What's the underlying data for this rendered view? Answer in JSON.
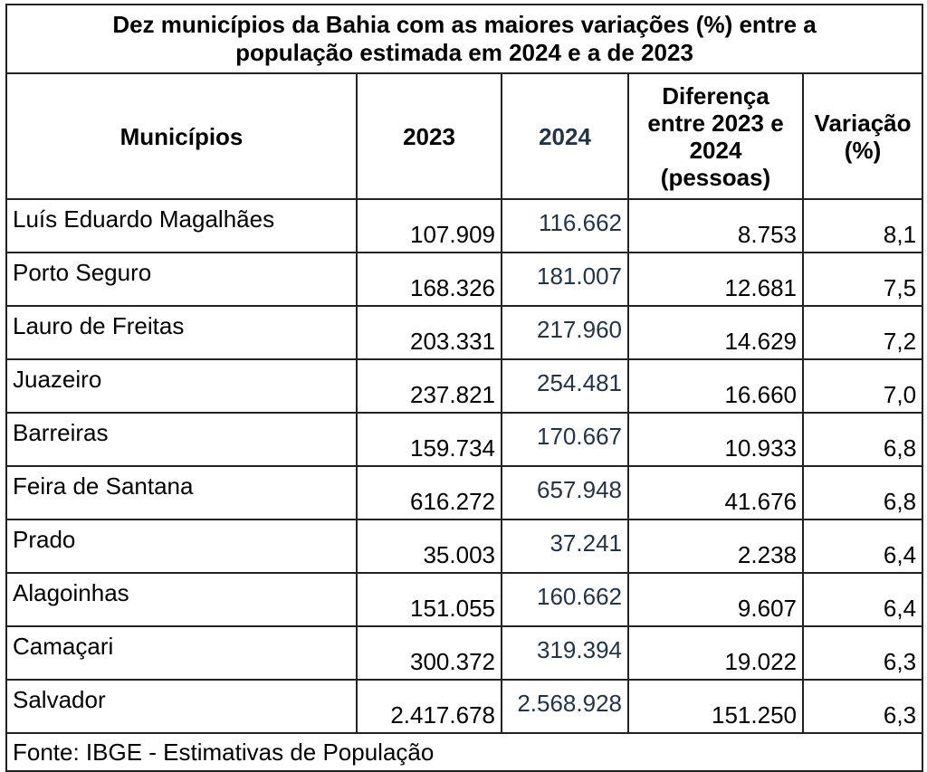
{
  "title": {
    "line1": "Dez municípios da Bahia com as maiores variações (%) entre a",
    "line2": "população estimada em 2024 e a de 2023"
  },
  "headers": {
    "municipios": "Municípios",
    "y2023": "2023",
    "y2024": "2024",
    "diferenca": [
      "Diferença",
      "entre 2023 e",
      "2024",
      "(pessoas)"
    ],
    "variacao": [
      "Variação",
      "(%)"
    ]
  },
  "rows": [
    {
      "municipio": "Luís Eduardo Magalhães",
      "y2023": "107.909",
      "y2024": "116.662",
      "diferenca": "8.753",
      "variacao": "8,1"
    },
    {
      "municipio": "Porto Seguro",
      "y2023": "168.326",
      "y2024": "181.007",
      "diferenca": "12.681",
      "variacao": "7,5"
    },
    {
      "municipio": "Lauro de Freitas",
      "y2023": "203.331",
      "y2024": "217.960",
      "diferenca": "14.629",
      "variacao": "7,2"
    },
    {
      "municipio": "Juazeiro",
      "y2023": "237.821",
      "y2024": "254.481",
      "diferenca": "16.660",
      "variacao": "7,0"
    },
    {
      "municipio": "Barreiras",
      "y2023": "159.734",
      "y2024": "170.667",
      "diferenca": "10.933",
      "variacao": "6,8"
    },
    {
      "municipio": "Feira de Santana",
      "y2023": "616.272",
      "y2024": "657.948",
      "diferenca": "41.676",
      "variacao": "6,8"
    },
    {
      "municipio": "Prado",
      "y2023": "35.003",
      "y2024": "37.241",
      "diferenca": "2.238",
      "variacao": "6,4"
    },
    {
      "municipio": "Alagoinhas",
      "y2023": "151.055",
      "y2024": "160.662",
      "diferenca": "9.607",
      "variacao": "6,4"
    },
    {
      "municipio": "Camaçari",
      "y2023": "300.372",
      "y2024": "319.394",
      "diferenca": "19.022",
      "variacao": "6,3"
    },
    {
      "municipio": "Salvador",
      "y2023": "2.417.678",
      "y2024": "2.568.928",
      "diferenca": "151.250",
      "variacao": "6,3"
    }
  ],
  "source": "Fonte: IBGE - Estimativas de População"
}
